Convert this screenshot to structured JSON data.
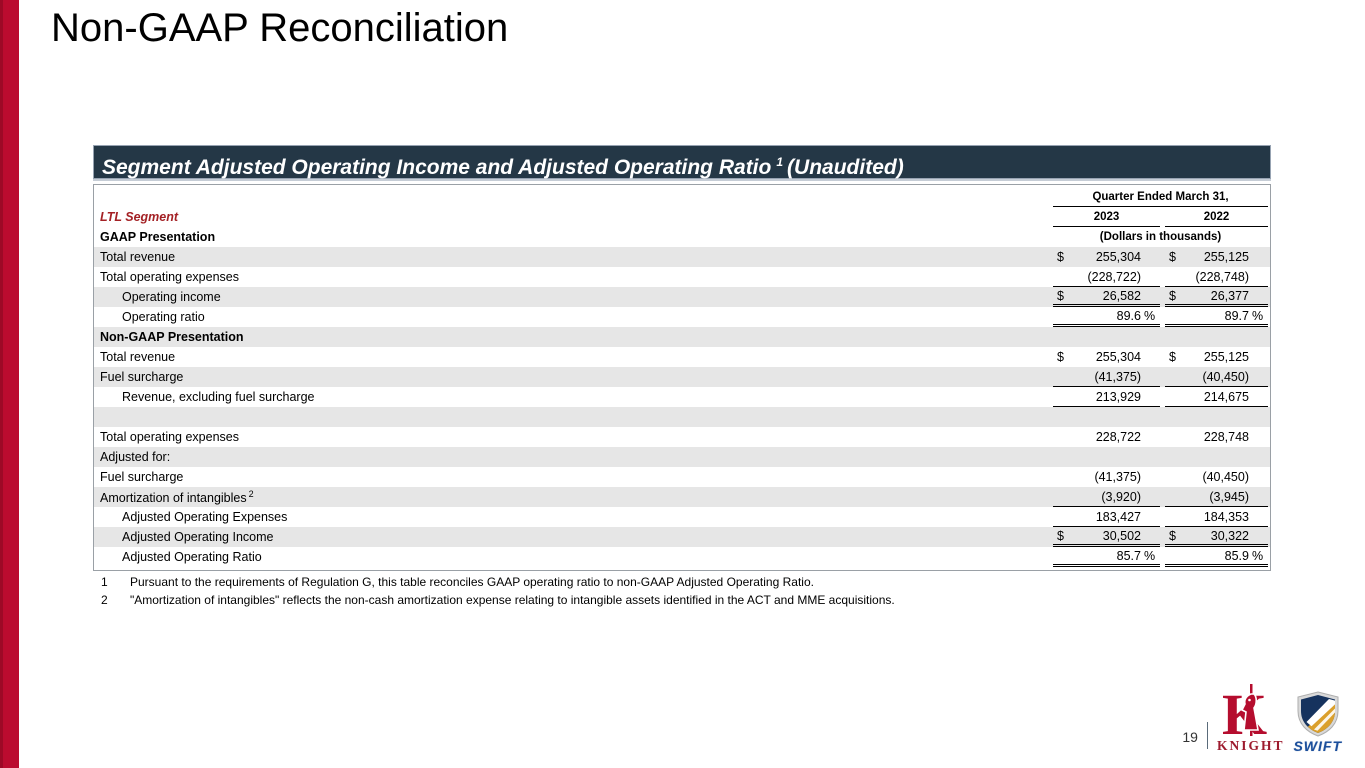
{
  "slide": {
    "title": "Non-GAAP Reconciliation",
    "page_number": "19"
  },
  "banner": {
    "text_before": "Segment Adjusted Operating Income and Adjusted Operating Ratio",
    "sup": "1",
    "text_after": "(Unaudited)"
  },
  "table": {
    "segment_label": "LTL Segment",
    "gaap_section_label": "GAAP Presentation",
    "col_group_header": "Quarter Ended March 31,",
    "col_headers": [
      "2023",
      "2022"
    ],
    "units_note": "(Dollars in thousands)",
    "rows": [
      {
        "label": "Total revenue",
        "indent": false,
        "bold": false,
        "sup": "",
        "shade": true,
        "d1": "$",
        "v1": "255,304",
        "s1": "",
        "d2": "$",
        "v2": "255,125",
        "s2": "",
        "rule": "none"
      },
      {
        "label": "Total operating expenses",
        "indent": false,
        "bold": false,
        "sup": "",
        "shade": false,
        "d1": "",
        "v1": "(228,722)",
        "s1": "",
        "d2": "",
        "v2": "(228,748)",
        "s2": "",
        "rule": "single"
      },
      {
        "label": "Operating income",
        "indent": true,
        "bold": false,
        "sup": "",
        "shade": true,
        "d1": "$",
        "v1": "26,582",
        "s1": "",
        "d2": "$",
        "v2": "26,377",
        "s2": "",
        "rule": "double"
      },
      {
        "label": "Operating ratio",
        "indent": true,
        "bold": false,
        "sup": "",
        "shade": false,
        "d1": "",
        "v1": "89.6",
        "s1": "%",
        "d2": "",
        "v2": "89.7",
        "s2": "%",
        "rule": "double"
      },
      {
        "label": "Non-GAAP Presentation",
        "indent": false,
        "bold": true,
        "sup": "",
        "shade": true,
        "d1": "",
        "v1": "",
        "s1": "",
        "d2": "",
        "v2": "",
        "s2": "",
        "rule": "none"
      },
      {
        "label": "Total revenue",
        "indent": false,
        "bold": false,
        "sup": "",
        "shade": false,
        "d1": "$",
        "v1": "255,304",
        "s1": "",
        "d2": "$",
        "v2": "255,125",
        "s2": "",
        "rule": "none"
      },
      {
        "label": "Fuel surcharge",
        "indent": false,
        "bold": false,
        "sup": "",
        "shade": true,
        "d1": "",
        "v1": "(41,375)",
        "s1": "",
        "d2": "",
        "v2": "(40,450)",
        "s2": "",
        "rule": "single"
      },
      {
        "label": "Revenue, excluding fuel surcharge",
        "indent": true,
        "bold": false,
        "sup": "",
        "shade": false,
        "d1": "",
        "v1": "213,929",
        "s1": "",
        "d2": "",
        "v2": "214,675",
        "s2": "",
        "rule": "single"
      },
      {
        "label": "",
        "indent": false,
        "bold": false,
        "sup": "",
        "shade": true,
        "d1": "",
        "v1": "",
        "s1": "",
        "d2": "",
        "v2": "",
        "s2": "",
        "rule": "none"
      },
      {
        "label": "Total operating expenses",
        "indent": false,
        "bold": false,
        "sup": "",
        "shade": false,
        "d1": "",
        "v1": "228,722",
        "s1": "",
        "d2": "",
        "v2": "228,748",
        "s2": "",
        "rule": "none"
      },
      {
        "label": "Adjusted for:",
        "indent": false,
        "bold": false,
        "sup": "",
        "shade": true,
        "d1": "",
        "v1": "",
        "s1": "",
        "d2": "",
        "v2": "",
        "s2": "",
        "rule": "none"
      },
      {
        "label": "Fuel surcharge",
        "indent": false,
        "bold": false,
        "sup": "",
        "shade": false,
        "d1": "",
        "v1": "(41,375)",
        "s1": "",
        "d2": "",
        "v2": "(40,450)",
        "s2": "",
        "rule": "none"
      },
      {
        "label": "Amortization of intangibles",
        "indent": false,
        "bold": false,
        "sup": "2",
        "shade": true,
        "d1": "",
        "v1": "(3,920)",
        "s1": "",
        "d2": "",
        "v2": "(3,945)",
        "s2": "",
        "rule": "single"
      },
      {
        "label": "Adjusted Operating Expenses",
        "indent": true,
        "bold": false,
        "sup": "",
        "shade": false,
        "d1": "",
        "v1": "183,427",
        "s1": "",
        "d2": "",
        "v2": "184,353",
        "s2": "",
        "rule": "single"
      },
      {
        "label": "Adjusted Operating Income",
        "indent": true,
        "bold": false,
        "sup": "",
        "shade": true,
        "d1": "$",
        "v1": "30,502",
        "s1": "",
        "d2": "$",
        "v2": "30,322",
        "s2": "",
        "rule": "double"
      },
      {
        "label": "Adjusted Operating Ratio",
        "indent": true,
        "bold": false,
        "sup": "",
        "shade": false,
        "d1": "",
        "v1": "85.7",
        "s1": "%",
        "d2": "",
        "v2": "85.9",
        "s2": "%",
        "rule": "double"
      }
    ]
  },
  "footnotes": [
    {
      "num": "1",
      "text": "Pursuant to the requirements of Regulation G, this table reconciles GAAP operating ratio to non-GAAP Adjusted Operating Ratio."
    },
    {
      "num": "2",
      "text": "\"Amortization of intangibles\" reflects the non-cash amortization expense relating to intangible assets identified in the ACT and MME acquisitions."
    }
  ],
  "logos": {
    "knight_label": "KNIGHT",
    "swift_label": "SWIFT"
  },
  "colors": {
    "accent_red": "#bb0b2f",
    "banner_navy": "#243746",
    "row_shade_gray": "#e6e6e6",
    "segment_label_red": "#a42125",
    "knight_brand_red": "#9d1b2e",
    "swift_brand_blue": "#1c4f9c",
    "swift_shield_navy": "#16335e",
    "swift_shield_gold": "#dba02c"
  }
}
